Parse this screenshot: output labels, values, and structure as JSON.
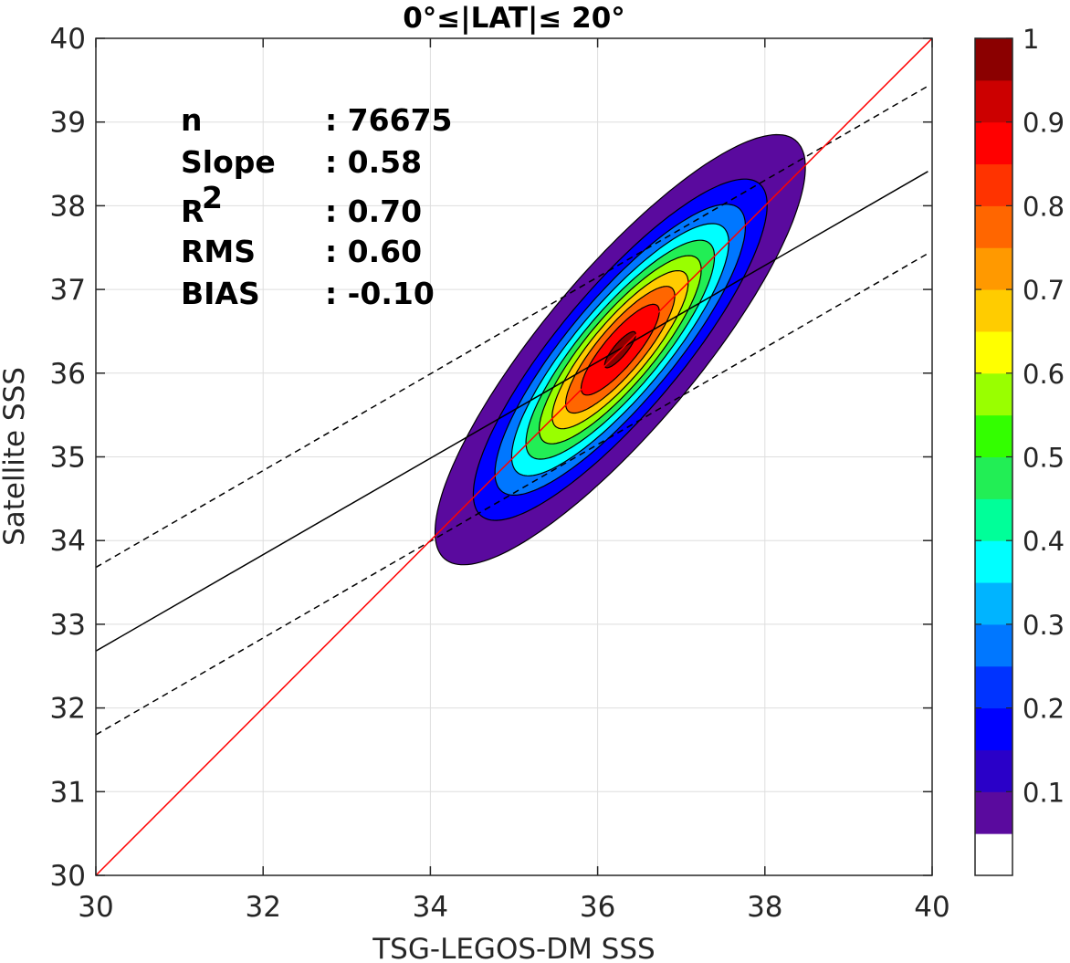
{
  "chart_data": {
    "type": "contour",
    "title": "0°≤|LAT|≤ 20°",
    "xlabel": "TSG-LEGOS-DM SSS",
    "ylabel": "Satellite SSS",
    "xlim": [
      30,
      40
    ],
    "ylim": [
      30,
      40
    ],
    "xticks": [
      30,
      32,
      34,
      36,
      38,
      40
    ],
    "yticks": [
      30,
      31,
      32,
      33,
      34,
      35,
      36,
      37,
      38,
      39,
      40
    ],
    "grid": true,
    "stats": [
      {
        "label": "n",
        "sep": ": ",
        "value": "76675",
        "sup": ""
      },
      {
        "label": "Slope",
        "sep": ": ",
        "value": "0.58",
        "sup": ""
      },
      {
        "label": "R",
        "sep": ": ",
        "value": "0.70",
        "sup": "2"
      },
      {
        "label": "RMS",
        "sep": ": ",
        "value": "0.60",
        "sup": ""
      },
      {
        "label": "BIAS",
        "sep": ": ",
        "value": "-0.10",
        "sup": ""
      }
    ],
    "lines": {
      "identity": {
        "x": [
          30,
          40
        ],
        "y": [
          30,
          40
        ],
        "color": "#ff0000",
        "style": "solid"
      },
      "fit": {
        "x": [
          30,
          39.95
        ],
        "y": [
          32.68,
          38.41
        ],
        "color": "#000000",
        "style": "solid"
      },
      "fit_upper": {
        "x": [
          30,
          39.95
        ],
        "y": [
          33.68,
          39.43
        ],
        "color": "#000000",
        "style": "dashed"
      },
      "fit_lower": {
        "x": [
          30,
          39.95
        ],
        "y": [
          31.68,
          37.43
        ],
        "color": "#000000",
        "style": "dashed"
      }
    },
    "density": {
      "center": [
        36.27,
        36.28
      ],
      "peak": 0.97,
      "levels": [
        0.05,
        0.15,
        0.25,
        0.35,
        0.45,
        0.55,
        0.65,
        0.75,
        0.85,
        0.95
      ]
    },
    "colorbar": {
      "ticks": [
        "0.1",
        "0.2",
        "0.3",
        "0.4",
        "0.5",
        "0.6",
        "0.7",
        "0.8",
        "0.9",
        "1"
      ],
      "tick_values": [
        0.1,
        0.2,
        0.3,
        0.4,
        0.5,
        0.6,
        0.7,
        0.8,
        0.9,
        1.0
      ],
      "colors": [
        "#ffffff",
        "#5a0a9e",
        "#2a00c8",
        "#0000ff",
        "#0033ff",
        "#0077ff",
        "#00b4ff",
        "#00ffff",
        "#00ff99",
        "#22ee55",
        "#33ff00",
        "#99ff00",
        "#ffff00",
        "#ffcc00",
        "#ff9900",
        "#ff6600",
        "#ff3300",
        "#ff0000",
        "#cc0000",
        "#8b0000"
      ]
    }
  }
}
